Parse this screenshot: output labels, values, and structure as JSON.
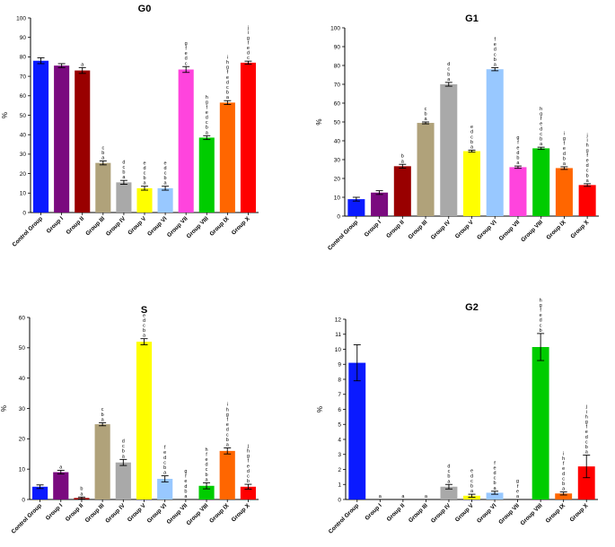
{
  "chart_data": [
    {
      "id": "g0",
      "type": "bar",
      "title": "G0",
      "ylabel": "%",
      "ylim": [
        0,
        100
      ],
      "ystep": 10,
      "categories": [
        "Control Group",
        "Group I",
        "Group II",
        "Group III",
        "Group IV",
        "Group V",
        "Group VI",
        "Group VII",
        "Group VIII",
        "Group IX",
        "Group X"
      ],
      "values": [
        78,
        75.5,
        73,
        25.5,
        15.5,
        12.5,
        12.5,
        73.5,
        38.5,
        56.5,
        77
      ],
      "errors": [
        1.5,
        1,
        1.5,
        1,
        1,
        1,
        1,
        1.5,
        1,
        1,
        0.8
      ],
      "colors": [
        "#0a1aff",
        "#7a0a7f",
        "#990000",
        "#b0a27a",
        "#a9a9a9",
        "#ffff00",
        "#98c8ff",
        "#ff44dd",
        "#00cc00",
        "#ff6600",
        "#ff0000"
      ],
      "significance": [
        "",
        "",
        "a",
        "c\nb\na",
        "d\nc\nb\na",
        "e\nd\nc\nb\na",
        "e\nd\nc\nb\na",
        "g\nf\ne\nd\nc",
        "h\ng\nf\ne\nd\nc\nb\na",
        "i\nh\ng\nf\ne\nd\nc\nb\na",
        "j\ni\ng\nf\ne\nd\nc"
      ]
    },
    {
      "id": "g1",
      "type": "bar",
      "title": "G1",
      "ylabel": "%",
      "ylim": [
        0,
        100
      ],
      "ystep": 10,
      "categories": [
        "Control Group",
        "Group I",
        "Group II",
        "Group III",
        "Group IV",
        "Group V",
        "Group VI",
        "Group VII",
        "Group VIII",
        "Group IX",
        "Group X"
      ],
      "values": [
        9,
        12.5,
        26.5,
        49.5,
        70,
        34.5,
        78,
        26,
        36,
        25.5,
        16.5
      ],
      "errors": [
        1,
        1,
        1,
        0.5,
        1,
        0.5,
        0.8,
        0.6,
        0.6,
        0.7,
        0.7
      ],
      "colors": [
        "#0a1aff",
        "#7a0a7f",
        "#990000",
        "#b0a27a",
        "#a9a9a9",
        "#ffff00",
        "#98c8ff",
        "#ff44dd",
        "#00cc00",
        "#ff6600",
        "#ff0000"
      ],
      "significance": [
        "",
        "",
        "b\na",
        "c\nb\na",
        "d\nc\nb\na",
        "e\nd\nc\nb\na",
        "f\ne\nd\nc\nb\na",
        "g\nf\ne\nd\nb\na",
        "h\ng\nf\ne\nd\nc\nb\na",
        "i\ng\nf\ne\nd\nb\na",
        "j\ni\nh\ng\nf\ne\nd\nc\nb\na"
      ]
    },
    {
      "id": "s",
      "type": "bar",
      "title": "S",
      "ylabel": "%",
      "ylim": [
        0,
        60
      ],
      "ystep": 10,
      "categories": [
        "Control Group",
        "Group I",
        "Group II",
        "Group III",
        "Group IV",
        "Group V",
        "Group VI",
        "Group VII",
        "Group VIII",
        "Group IX",
        "Group X"
      ],
      "values": [
        4.2,
        9,
        0.5,
        24.8,
        12.2,
        52,
        6.8,
        0,
        4.5,
        16,
        4.2
      ],
      "errors": [
        0.6,
        0.6,
        0.3,
        0.5,
        1,
        1,
        1,
        0,
        1,
        1,
        0.8
      ],
      "colors": [
        "#0a1aff",
        "#7a0a7f",
        "#990000",
        "#b0a27a",
        "#a9a9a9",
        "#ffff00",
        "#98c8ff",
        "#ff44dd",
        "#00cc00",
        "#ff6600",
        "#ff0000"
      ],
      "significance": [
        "",
        "a",
        "b\na",
        "c\nb\na",
        "d\nc\nb\na",
        "e\nd\nc\nb\na",
        "f\ne\nd\nc\nb\na",
        "g\nf\ne\nd\nb\na",
        "h\nf\ne\nd\nc\nb\na",
        "i\nh\ng\nf\ne\nd\nc\nb\na",
        "j\nh\ng\nf\ne\nd\nc\nb"
      ]
    },
    {
      "id": "g2",
      "type": "bar",
      "title": "G2",
      "ylabel": "%",
      "ylim": [
        0,
        12
      ],
      "ystep": 1,
      "categories": [
        "Control Group",
        "Group I",
        "Group II",
        "Group III",
        "Group IV",
        "Group V",
        "Group VI",
        "Group VII",
        "Group VIII",
        "Group IX",
        "Group X"
      ],
      "values": [
        9.1,
        0,
        0,
        0,
        0.85,
        0.25,
        0.45,
        0,
        10.15,
        0.4,
        2.2
      ],
      "errors": [
        1.2,
        0,
        0,
        0,
        0.15,
        0.1,
        0.1,
        0,
        0.9,
        0.1,
        0.75
      ],
      "colors": [
        "#0a1aff",
        "#7a0a7f",
        "#990000",
        "#b0a27a",
        "#a9a9a9",
        "#ffff00",
        "#98c8ff",
        "#ff44dd",
        "#00cc00",
        "#ff6600",
        "#ff0000"
      ],
      "significance": [
        "",
        "a",
        "a",
        "a",
        "d\nc\nb\na",
        "e\nd\nc\nb\na",
        "f\ne\nd\nc\nb\na",
        "g\nf\ne\na",
        "h\ng\nf\ne\nd\nc\nb",
        "i\nh\nf\ne\nd\nc\nb\na",
        "j\ni\nh\ng\nf\ne\nd\nc\nb\na"
      ]
    }
  ]
}
